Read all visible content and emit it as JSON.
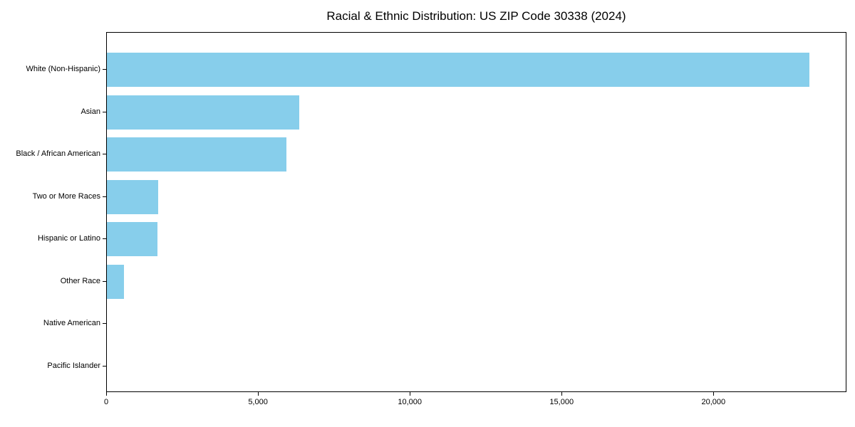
{
  "title": "Racial & Ethnic Distribution: US ZIP Code 30338 (2024)",
  "colors": {
    "bar": "#87CEEB",
    "axis": "#000000",
    "background": "#FFFFFF",
    "text": "#000000"
  },
  "chart_data": {
    "type": "bar",
    "orientation": "horizontal",
    "title": "Racial & Ethnic Distribution: US ZIP Code 30338 (2024)",
    "categories": [
      "White (Non-Hispanic)",
      "Asian",
      "Black / African American",
      "Two or More Races",
      "Hispanic or Latino",
      "Other Race",
      "Native American",
      "Pacific Islander"
    ],
    "values": [
      23170,
      6340,
      5920,
      1700,
      1680,
      570,
      0,
      0
    ],
    "xlabel": "",
    "ylabel": "",
    "xlim": [
      0,
      24380
    ],
    "xticks": [
      0,
      5000,
      10000,
      15000,
      20000
    ],
    "xtick_labels": [
      "0",
      "5,000",
      "10,000",
      "15,000",
      "20,000"
    ],
    "bar_color": "#87CEEB",
    "grid": false,
    "legend": null
  }
}
